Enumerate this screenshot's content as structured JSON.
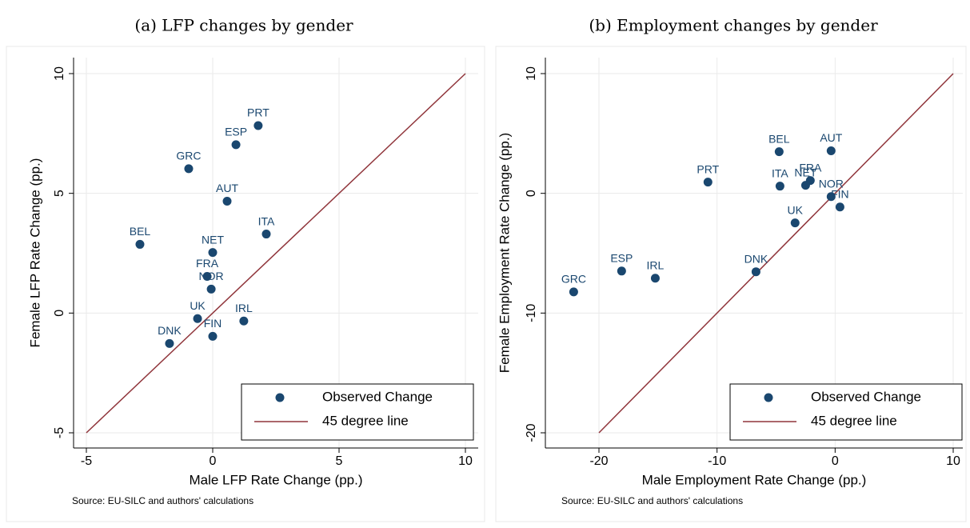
{
  "chart_data": [
    {
      "type": "scatter",
      "title": "(a) LFP changes by gender",
      "x_label": "Male LFP Rate Change (pp.)",
      "y_label": "Female LFP Rate Change (pp.)",
      "note": "Source: EU-SILC and authors' calculations",
      "xlim": [
        -5,
        10
      ],
      "ylim": [
        -5,
        10
      ],
      "xticks": [
        -5,
        0,
        5,
        10
      ],
      "yticks": [
        -5,
        0,
        5,
        10
      ],
      "grid": true,
      "legend": "bottom-right",
      "series": [
        {
          "name": "Observed Change",
          "color": "#1a476f",
          "labels": [
            "PRT",
            "ESP",
            "GRC",
            "AUT",
            "ITA",
            "BEL",
            "NET",
            "FRA",
            "NOR",
            "UK",
            "IRL",
            "DNK",
            "FIN"
          ],
          "x": [
            1.8,
            0.92,
            -0.95,
            0.57,
            2.12,
            -2.88,
            0,
            -0.22,
            -0.06,
            -0.6,
            1.23,
            -1.71,
            0
          ],
          "values": [
            7.83,
            7.03,
            6.03,
            4.67,
            3.3,
            2.87,
            2.53,
            1.53,
            1.0,
            -0.23,
            -0.33,
            -1.27,
            -0.97
          ]
        }
      ],
      "line": {
        "name": "45 degree line",
        "color": "#90353b",
        "x": [
          -5,
          10
        ],
        "values": [
          -5,
          10
        ]
      }
    },
    {
      "type": "scatter",
      "title": "(b) Employment changes by gender",
      "x_label": "Male Employment Rate Change (pp.)",
      "y_label": "Female Employment Rate Change (pp.)",
      "note": "Source: EU-SILC and authors' calculations",
      "xlim": [
        -20,
        10
      ],
      "ylim": [
        -20,
        10
      ],
      "xticks": [
        -20,
        -10,
        0,
        10
      ],
      "yticks": [
        -20,
        -10,
        0,
        10
      ],
      "grid": true,
      "legend": "bottom-right",
      "series": [
        {
          "name": "Observed Change",
          "color": "#1a476f",
          "labels": [
            "BEL",
            "AUT",
            "PRT",
            "ITA",
            "FRA",
            "NET",
            "NOR",
            "FIN",
            "UK",
            "DNK",
            "ESP",
            "IRL",
            "GRC"
          ],
          "x": [
            -4.74,
            -0.34,
            -10.77,
            -4.67,
            -2.1,
            -2.5,
            -0.34,
            0.41,
            -3.39,
            -6.7,
            -18.08,
            -15.23,
            -22.14
          ],
          "values": [
            3.48,
            3.55,
            0.94,
            0.6,
            1.07,
            0.67,
            -0.27,
            -1.14,
            -2.47,
            -6.55,
            -6.49,
            -7.09,
            -8.23
          ]
        }
      ],
      "line": {
        "name": "45 degree line",
        "color": "#90353b",
        "x": [
          -20,
          10
        ],
        "values": [
          -20,
          10
        ]
      }
    }
  ]
}
